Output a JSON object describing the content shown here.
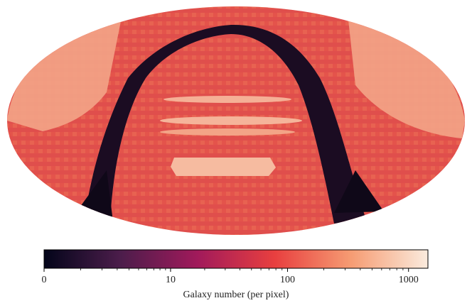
{
  "chart_data": {
    "type": "colorbar",
    "xlabel": "Galaxy number (per pixel)",
    "scale": "log1p",
    "xlim": [
      0,
      1445
    ],
    "xticks": [
      0,
      10,
      100,
      1000
    ],
    "minor_xticks": [
      1,
      2,
      3,
      4,
      5,
      6,
      7,
      8,
      9,
      20,
      30,
      40,
      50,
      60,
      70,
      80,
      90,
      200,
      300,
      400,
      500,
      600,
      700,
      800,
      900
    ],
    "colormap": [
      "#03051a",
      "#4c1d4b",
      "#a11a5b",
      "#e83f3f",
      "#f69c73",
      "#faebdd"
    ]
  }
}
